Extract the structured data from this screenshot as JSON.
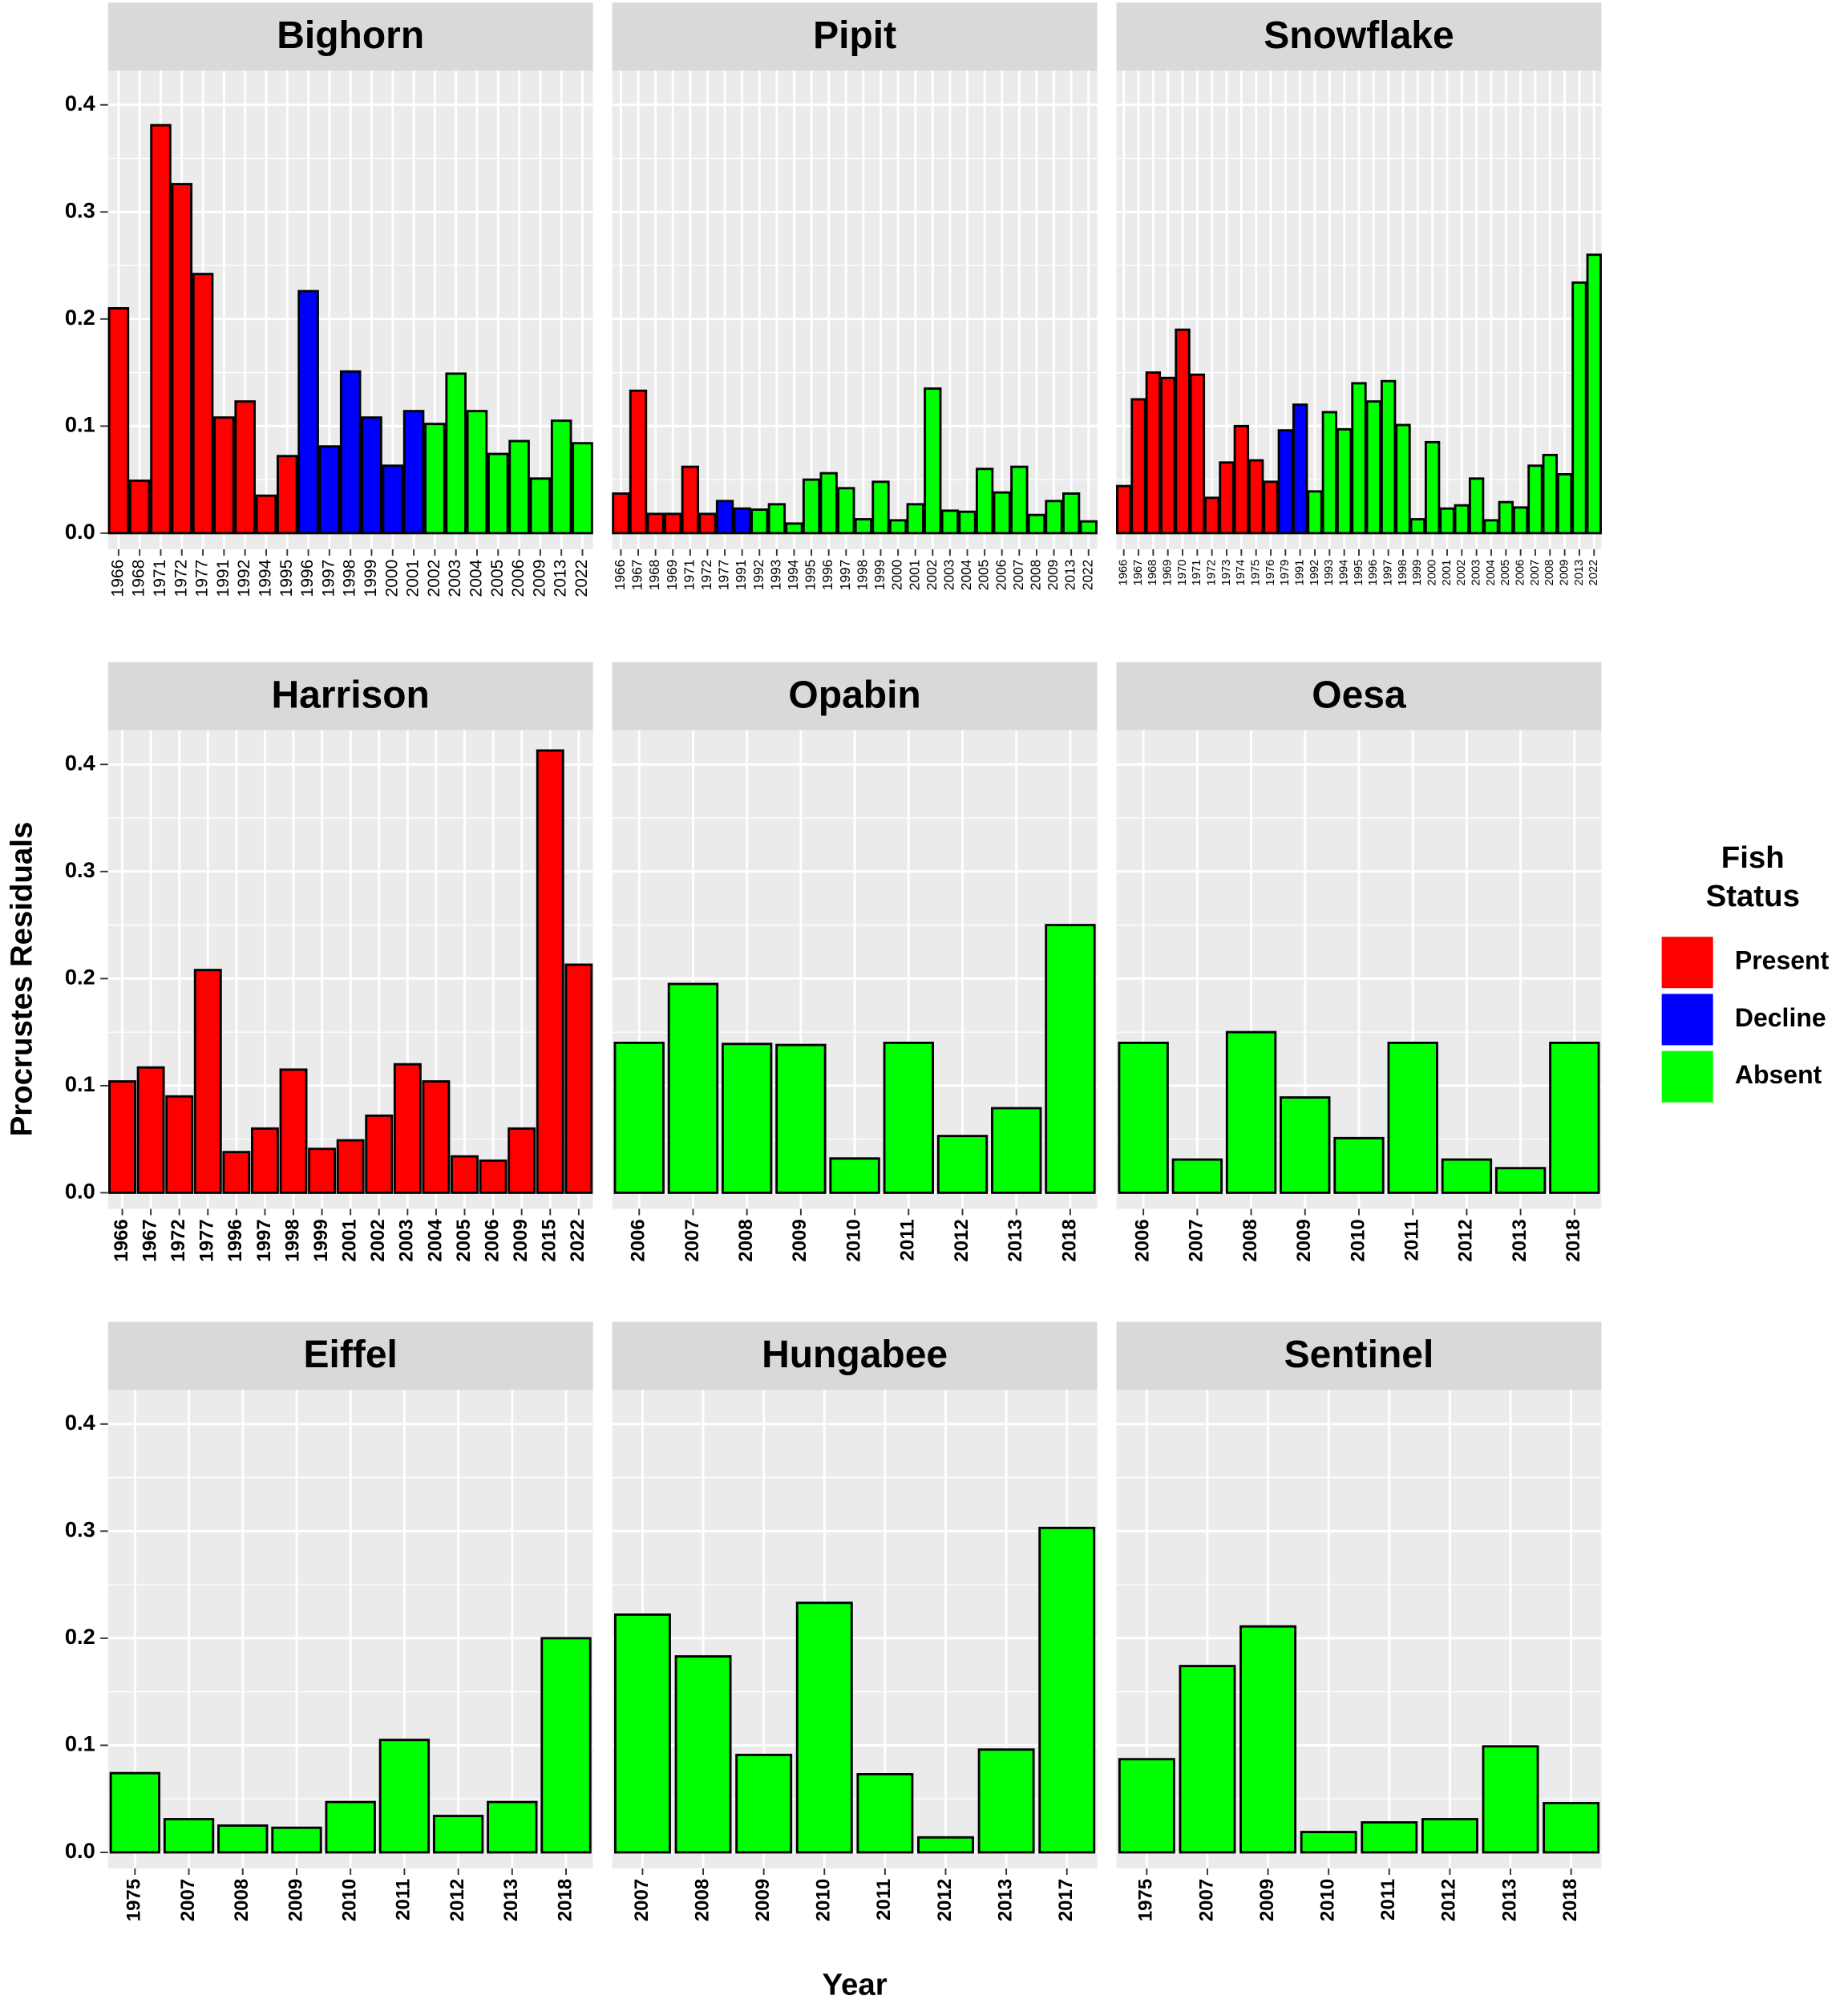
{
  "chart_data": {
    "type": "facet_bar",
    "ylabel": "Procrustes Residuals",
    "xlabel": "Year",
    "ylim": [
      -0.015,
      0.432
    ],
    "yticks": [
      {
        "value": 0,
        "label": "0.0"
      },
      0.1,
      0.2,
      0.3,
      0.4
    ],
    "grid": true,
    "legend": {
      "title": "Fish Status",
      "position": "right",
      "items": [
        {
          "name": "Present",
          "color": "#ff0000"
        },
        {
          "name": "Decline",
          "color": "#0000ff"
        },
        {
          "name": "Absent",
          "color": "#00ff00"
        }
      ]
    },
    "panels": [
      {
        "title": "Bighorn",
        "categories": [
          "1966",
          "1968",
          "1971",
          "1972",
          "1977",
          "1991",
          "1992",
          "1994",
          "1995",
          "1996",
          "1997",
          "1998",
          "1999",
          "2000",
          "2001",
          "2002",
          "2003",
          "2004",
          "2005",
          "2006",
          "2009",
          "2013",
          "2022"
        ],
        "values": [
          0.21,
          0.049,
          0.381,
          0.326,
          0.242,
          0.108,
          0.123,
          0.035,
          0.072,
          0.226,
          0.081,
          0.151,
          0.108,
          0.063,
          0.114,
          0.102,
          0.149,
          0.114,
          0.074,
          0.086,
          0.051,
          0.105,
          0.084
        ],
        "colors": [
          "#ff0000",
          "#ff0000",
          "#ff0000",
          "#ff0000",
          "#ff0000",
          "#ff0000",
          "#ff0000",
          "#ff0000",
          "#ff0000",
          "#0000ff",
          "#0000ff",
          "#0000ff",
          "#0000ff",
          "#0000ff",
          "#0000ff",
          "#00ff00",
          "#00ff00",
          "#00ff00",
          "#00ff00",
          "#00ff00",
          "#00ff00",
          "#00ff00",
          "#00ff00"
        ]
      },
      {
        "title": "Pipit",
        "categories": [
          "1966",
          "1967",
          "1968",
          "1969",
          "1971",
          "1972",
          "1977",
          "1991",
          "1992",
          "1993",
          "1994",
          "1995",
          "1996",
          "1997",
          "1998",
          "1999",
          "2000",
          "2001",
          "2002",
          "2003",
          "2004",
          "2005",
          "2006",
          "2007",
          "2008",
          "2009",
          "2013",
          "2022"
        ],
        "values": [
          0.037,
          0.133,
          0.018,
          0.018,
          0.062,
          0.018,
          0.03,
          0.023,
          0.022,
          0.027,
          0.009,
          0.05,
          0.056,
          0.042,
          0.013,
          0.048,
          0.012,
          0.027,
          0.135,
          0.021,
          0.02,
          0.06,
          0.038,
          0.062,
          0.017,
          0.03,
          0.037,
          0.011
        ],
        "colors": [
          "#ff0000",
          "#ff0000",
          "#ff0000",
          "#ff0000",
          "#ff0000",
          "#ff0000",
          "#0000ff",
          "#0000ff",
          "#00ff00",
          "#00ff00",
          "#00ff00",
          "#00ff00",
          "#00ff00",
          "#00ff00",
          "#00ff00",
          "#00ff00",
          "#00ff00",
          "#00ff00",
          "#00ff00",
          "#00ff00",
          "#00ff00",
          "#00ff00",
          "#00ff00",
          "#00ff00",
          "#00ff00",
          "#00ff00",
          "#00ff00",
          "#00ff00"
        ]
      },
      {
        "title": "Snowflake",
        "categories": [
          "1966",
          "1967",
          "1968",
          "1969",
          "1970",
          "1971",
          "1972",
          "1973",
          "1974",
          "1975",
          "1976",
          "1979",
          "1991",
          "1992",
          "1993",
          "1994",
          "1995",
          "1996",
          "1997",
          "1998",
          "1999",
          "2000",
          "2001",
          "2002",
          "2003",
          "2004",
          "2005",
          "2006",
          "2007",
          "2008",
          "2009",
          "2013",
          "2022"
        ],
        "values": [
          0.044,
          0.125,
          0.15,
          0.145,
          0.19,
          0.148,
          0.033,
          0.066,
          0.1,
          0.068,
          0.048,
          0.096,
          0.12,
          0.039,
          0.113,
          0.097,
          0.14,
          0.123,
          0.142,
          0.101,
          0.013,
          0.085,
          0.023,
          0.026,
          0.051,
          0.012,
          0.029,
          0.024,
          0.063,
          0.073,
          0.055,
          0.234,
          0.26
        ],
        "colors": [
          "#ff0000",
          "#ff0000",
          "#ff0000",
          "#ff0000",
          "#ff0000",
          "#ff0000",
          "#ff0000",
          "#ff0000",
          "#ff0000",
          "#ff0000",
          "#ff0000",
          "#0000ff",
          "#0000ff",
          "#00ff00",
          "#00ff00",
          "#00ff00",
          "#00ff00",
          "#00ff00",
          "#00ff00",
          "#00ff00",
          "#00ff00",
          "#00ff00",
          "#00ff00",
          "#00ff00",
          "#00ff00",
          "#00ff00",
          "#00ff00",
          "#00ff00",
          "#00ff00",
          "#00ff00",
          "#00ff00",
          "#00ff00",
          "#00ff00"
        ]
      },
      {
        "title": "Harrison",
        "categories": [
          "1966",
          "1967",
          "1972",
          "1977",
          "1996",
          "1997",
          "1998",
          "1999",
          "2001",
          "2002",
          "2003",
          "2004",
          "2005",
          "2006",
          "2009",
          "2015",
          "2022"
        ],
        "values": [
          0.104,
          0.117,
          0.09,
          0.208,
          0.038,
          0.06,
          0.115,
          0.041,
          0.049,
          0.072,
          0.12,
          0.104,
          0.034,
          0.03,
          0.06,
          0.413,
          0.213
        ],
        "colors": [
          "#ff0000",
          "#ff0000",
          "#ff0000",
          "#ff0000",
          "#ff0000",
          "#ff0000",
          "#ff0000",
          "#ff0000",
          "#ff0000",
          "#ff0000",
          "#ff0000",
          "#ff0000",
          "#ff0000",
          "#ff0000",
          "#ff0000",
          "#ff0000",
          "#ff0000"
        ]
      },
      {
        "title": "Opabin",
        "categories": [
          "2006",
          "2007",
          "2008",
          "2009",
          "2010",
          "2011",
          "2012",
          "2013",
          "2018"
        ],
        "values": [
          0.14,
          0.195,
          0.139,
          0.138,
          0.032,
          0.14,
          0.053,
          0.079,
          0.25
        ],
        "colors": [
          "#00ff00",
          "#00ff00",
          "#00ff00",
          "#00ff00",
          "#00ff00",
          "#00ff00",
          "#00ff00",
          "#00ff00",
          "#00ff00"
        ]
      },
      {
        "title": "Oesa",
        "categories": [
          "2006",
          "2007",
          "2008",
          "2009",
          "2010",
          "2011",
          "2012",
          "2013",
          "2018"
        ],
        "values": [
          0.14,
          0.031,
          0.15,
          0.089,
          0.051,
          0.14,
          0.031,
          0.023,
          0.14
        ],
        "colors": [
          "#00ff00",
          "#00ff00",
          "#00ff00",
          "#00ff00",
          "#00ff00",
          "#00ff00",
          "#00ff00",
          "#00ff00",
          "#00ff00"
        ]
      },
      {
        "title": "Eiffel",
        "categories": [
          "1975",
          "2007",
          "2008",
          "2009",
          "2010",
          "2011",
          "2012",
          "2013",
          "2018"
        ],
        "values": [
          0.074,
          0.031,
          0.025,
          0.023,
          0.047,
          0.105,
          0.034,
          0.047,
          0.2
        ],
        "colors": [
          "#00ff00",
          "#00ff00",
          "#00ff00",
          "#00ff00",
          "#00ff00",
          "#00ff00",
          "#00ff00",
          "#00ff00",
          "#00ff00"
        ]
      },
      {
        "title": "Hungabee",
        "categories": [
          "2007",
          "2008",
          "2009",
          "2010",
          "2011",
          "2012",
          "2013",
          "2017"
        ],
        "values": [
          0.222,
          0.183,
          0.091,
          0.233,
          0.073,
          0.014,
          0.096,
          0.303
        ],
        "colors": [
          "#00ff00",
          "#00ff00",
          "#00ff00",
          "#00ff00",
          "#00ff00",
          "#00ff00",
          "#00ff00",
          "#00ff00"
        ]
      },
      {
        "title": "Sentinel",
        "categories": [
          "1975",
          "2007",
          "2009",
          "2010",
          "2011",
          "2012",
          "2013",
          "2018"
        ],
        "values": [
          0.087,
          0.174,
          0.211,
          0.019,
          0.028,
          0.031,
          0.099,
          0.046
        ],
        "colors": [
          "#00ff00",
          "#00ff00",
          "#00ff00",
          "#00ff00",
          "#00ff00",
          "#00ff00",
          "#00ff00",
          "#00ff00"
        ]
      }
    ]
  }
}
